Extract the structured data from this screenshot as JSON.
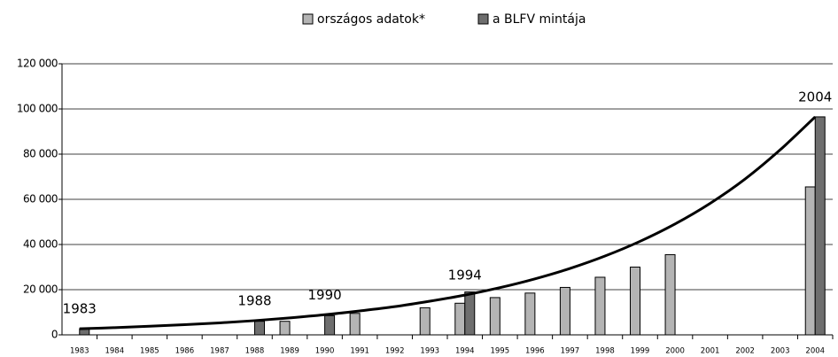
{
  "chart_data": {
    "type": "bar",
    "categories": [
      "1983",
      "1984",
      "1985",
      "1986",
      "1987",
      "1988",
      "1989",
      "1990",
      "1991",
      "1992",
      "1993",
      "1994",
      "1995",
      "1996",
      "1997",
      "1998",
      "1999",
      "2000",
      "2001",
      "2002",
      "2003",
      "2004"
    ],
    "series": [
      {
        "name": "országos adatok*",
        "color": "#b4b4b4",
        "values": [
          null,
          null,
          null,
          null,
          null,
          null,
          6000,
          null,
          9500,
          null,
          12000,
          14000,
          16500,
          18500,
          21000,
          25500,
          30000,
          35500,
          null,
          null,
          null,
          65500
        ]
      },
      {
        "name": "a BLFV mintája",
        "color": "#6e6e6e",
        "values": [
          2700,
          null,
          null,
          null,
          null,
          6000,
          null,
          8500,
          null,
          null,
          null,
          19000,
          null,
          null,
          null,
          null,
          null,
          null,
          null,
          null,
          null,
          96500
        ]
      }
    ],
    "trend": {
      "color": "#000000",
      "values": [
        2700,
        3200,
        3800,
        4500,
        5300,
        6300,
        7500,
        8900,
        10600,
        12500,
        14900,
        17600,
        20900,
        24800,
        29400,
        34900,
        41400,
        49100,
        58200,
        69000,
        81900,
        96500
      ]
    },
    "annotations": [
      {
        "text": "1983",
        "category": "1983"
      },
      {
        "text": "1988",
        "category": "1988"
      },
      {
        "text": "1990",
        "category": "1990"
      },
      {
        "text": "1994",
        "category": "1994"
      },
      {
        "text": "2004",
        "category": "2004"
      }
    ],
    "ylim": [
      0,
      120000
    ],
    "yticks": [
      0,
      {
        "value": 20000,
        "label": "20 000"
      },
      {
        "value": 40000,
        "label": "40 000"
      },
      {
        "value": 60000,
        "label": "60 000"
      },
      {
        "value": 80000,
        "label": "80 000"
      },
      {
        "value": 100000,
        "label": "100 000"
      },
      {
        "value": 120000,
        "label": "120 000"
      }
    ],
    "grid": true,
    "legend": "top"
  }
}
